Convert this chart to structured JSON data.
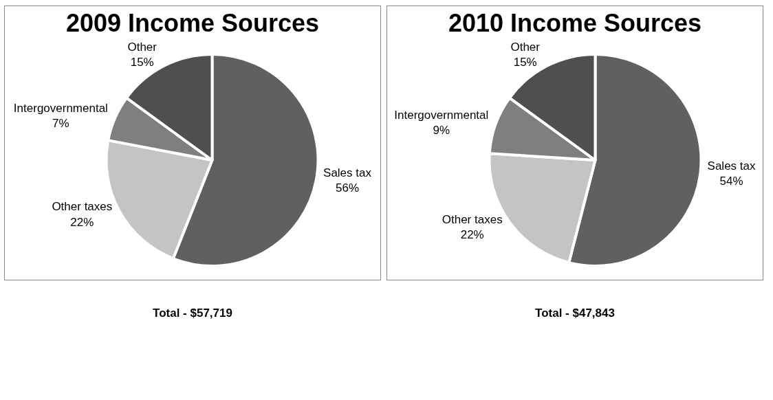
{
  "chart_data": [
    {
      "type": "pie",
      "title": "2009 Income Sources",
      "categories": [
        "Sales tax",
        "Other taxes",
        "Intergovernmental",
        "Other"
      ],
      "values": [
        56,
        22,
        7,
        15
      ],
      "value_labels": [
        "56%",
        "22%",
        "7%",
        "15%"
      ],
      "colors": [
        "#606060",
        "#c4c4c4",
        "#7f7f7f",
        "#4f4f4f"
      ],
      "annotations": [
        "Total - $57,719"
      ],
      "legend": false
    },
    {
      "type": "pie",
      "title": "2010 Income Sources",
      "categories": [
        "Sales tax",
        "Other taxes",
        "Intergovernmental",
        "Other"
      ],
      "values": [
        54,
        22,
        9,
        15
      ],
      "value_labels": [
        "54%",
        "22%",
        "9%",
        "15%"
      ],
      "colors": [
        "#606060",
        "#c4c4c4",
        "#7f7f7f",
        "#4f4f4f"
      ],
      "annotations": [
        "Total - $47,843"
      ],
      "legend": false
    }
  ]
}
